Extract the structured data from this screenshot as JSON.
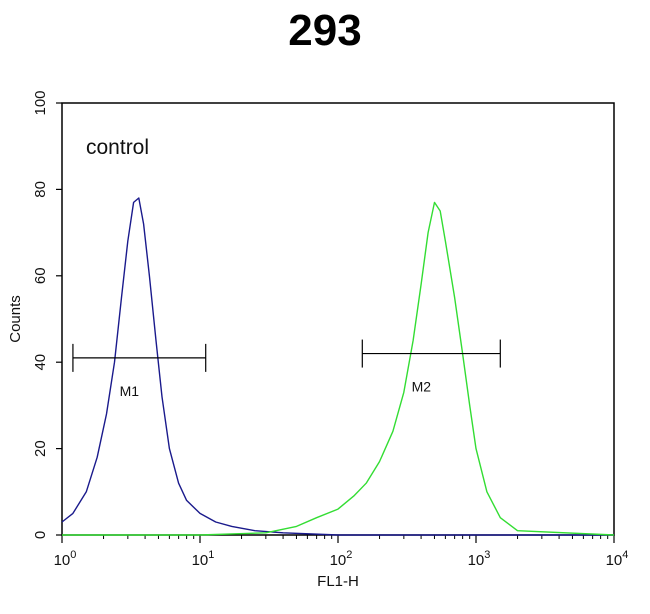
{
  "title": "293",
  "colors": {
    "control": "#1a1a8c",
    "sample": "#33dd33",
    "axis": "#000000"
  },
  "chart_data": {
    "type": "line",
    "title": "293",
    "xlabel": "FL1-H",
    "ylabel": "Counts",
    "xscale": "log",
    "xlim": [
      1,
      10000
    ],
    "ylim": [
      0,
      100
    ],
    "grid": false,
    "xticks": [
      {
        "value": 1,
        "base": "10",
        "exp": "0"
      },
      {
        "value": 10,
        "base": "10",
        "exp": "1"
      },
      {
        "value": 100,
        "base": "10",
        "exp": "2"
      },
      {
        "value": 1000,
        "base": "10",
        "exp": "3"
      },
      {
        "value": 10000,
        "base": "10",
        "exp": "4"
      }
    ],
    "yticks": [
      "0",
      "20",
      "40",
      "60",
      "80",
      "100"
    ],
    "annotation": "control",
    "series": [
      {
        "color": "#1a1a8c",
        "x": [
          1,
          1.2,
          1.5,
          1.8,
          2.1,
          2.4,
          2.7,
          3.0,
          3.3,
          3.6,
          3.9,
          4.3,
          4.8,
          5.3,
          6,
          7,
          8,
          10,
          13,
          17,
          25,
          40,
          100,
          300,
          1000,
          10000
        ],
        "y": [
          3,
          5,
          10,
          18,
          28,
          40,
          55,
          68,
          77,
          78,
          72,
          60,
          45,
          32,
          20,
          12,
          8,
          5,
          3,
          2,
          1,
          0.5,
          0,
          0,
          0,
          0
        ]
      },
      {
        "color": "#33dd33",
        "x": [
          1,
          10,
          30,
          50,
          70,
          100,
          130,
          160,
          200,
          250,
          300,
          350,
          400,
          450,
          500,
          550,
          600,
          700,
          800,
          900,
          1000,
          1200,
          1500,
          2000,
          10000
        ],
        "y": [
          0,
          0,
          0.5,
          2,
          4,
          6,
          9,
          12,
          17,
          24,
          33,
          45,
          58,
          70,
          77,
          75,
          68,
          55,
          42,
          30,
          20,
          10,
          4,
          1,
          0
        ]
      }
    ],
    "markers": [
      {
        "label": "M1",
        "x_start": 1.2,
        "x_end": 11,
        "y": 41
      },
      {
        "label": "M2",
        "x_start": 150,
        "x_end": 1500,
        "y": 42
      }
    ]
  }
}
